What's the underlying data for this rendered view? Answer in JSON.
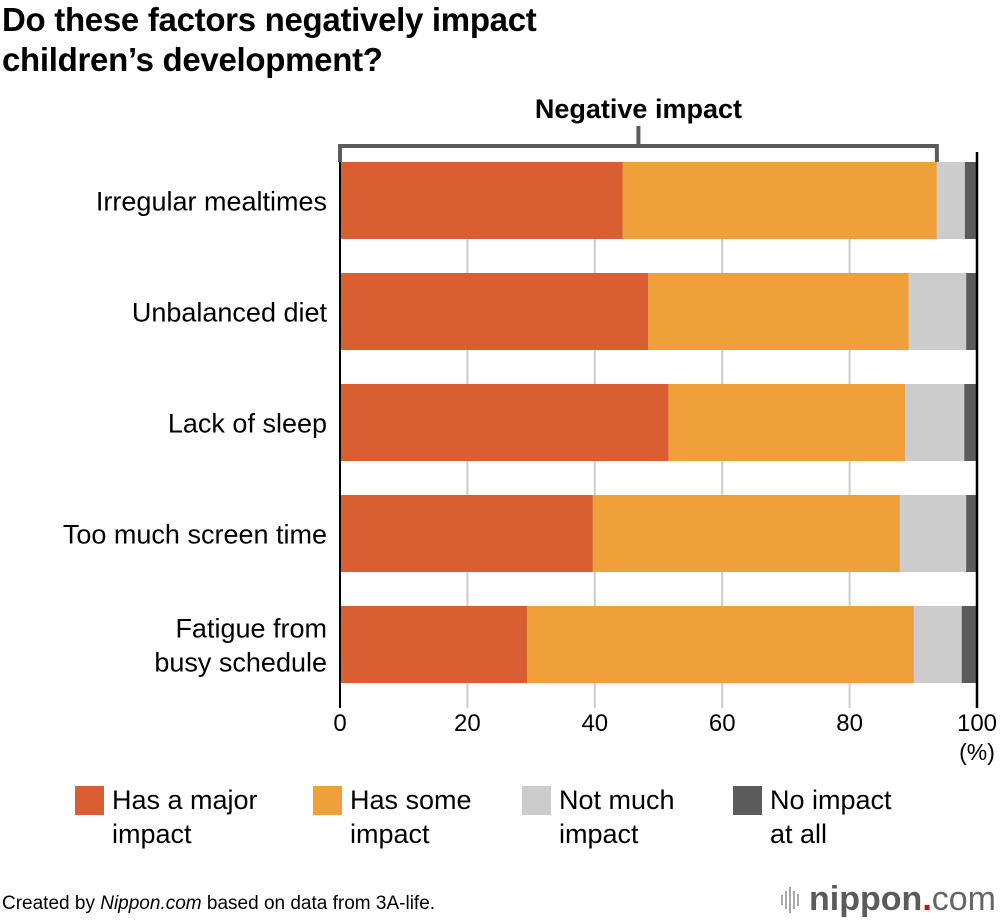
{
  "title_lines": [
    "Do these factors negatively impact",
    "children’s development?"
  ],
  "bracket_label": "Negative impact",
  "legend": [
    {
      "label_line1": "Has a major",
      "label_line2": "impact",
      "color": "#d95f32"
    },
    {
      "label_line1": "Has some",
      "label_line2": "impact",
      "color": "#f0a03a"
    },
    {
      "label_line1": "Not much",
      "label_line2": "impact",
      "color": "#cccccc"
    },
    {
      "label_line1": "No impact",
      "label_line2": "at all",
      "color": "#5b5b5b"
    }
  ],
  "footer": {
    "prefix": "Created by ",
    "source_italic": "Nippon.com",
    "suffix": " based on data from 3A-life."
  },
  "logo": {
    "name": "nippon",
    "dot": ".",
    "tld": "com"
  },
  "chart_data": {
    "type": "bar",
    "orientation": "horizontal",
    "stacked": true,
    "title": "Do these factors negatively impact children’s development?",
    "xlabel": "(%)",
    "ylabel": "",
    "xlim": [
      0,
      100
    ],
    "xticks": [
      0,
      20,
      40,
      60,
      80,
      100
    ],
    "unit_label": "(%)",
    "grid": true,
    "legend_position": "bottom",
    "categories": [
      [
        "Irregular mealtimes"
      ],
      [
        "Unbalanced diet"
      ],
      [
        "Lack of sleep"
      ],
      [
        "Too much screen time"
      ],
      [
        "Fatigue from",
        "busy schedule"
      ]
    ],
    "series": [
      {
        "name": "Has a major impact",
        "color": "#d95f32",
        "values": [
          44.4,
          48.4,
          51.6,
          39.7,
          29.4
        ]
      },
      {
        "name": "Has some impact",
        "color": "#f0a03a",
        "values": [
          49.3,
          40.9,
          37.1,
          48.2,
          60.7
        ]
      },
      {
        "name": "Not much impact",
        "color": "#cccccc",
        "values": [
          4.4,
          9.0,
          9.3,
          10.4,
          7.5
        ]
      },
      {
        "name": "No impact at all",
        "color": "#5b5b5b",
        "values": [
          1.9,
          1.7,
          2.0,
          1.7,
          2.4
        ]
      }
    ],
    "annotation": {
      "text": "Negative impact",
      "spans_series": [
        "Has a major impact",
        "Has some impact"
      ]
    }
  }
}
